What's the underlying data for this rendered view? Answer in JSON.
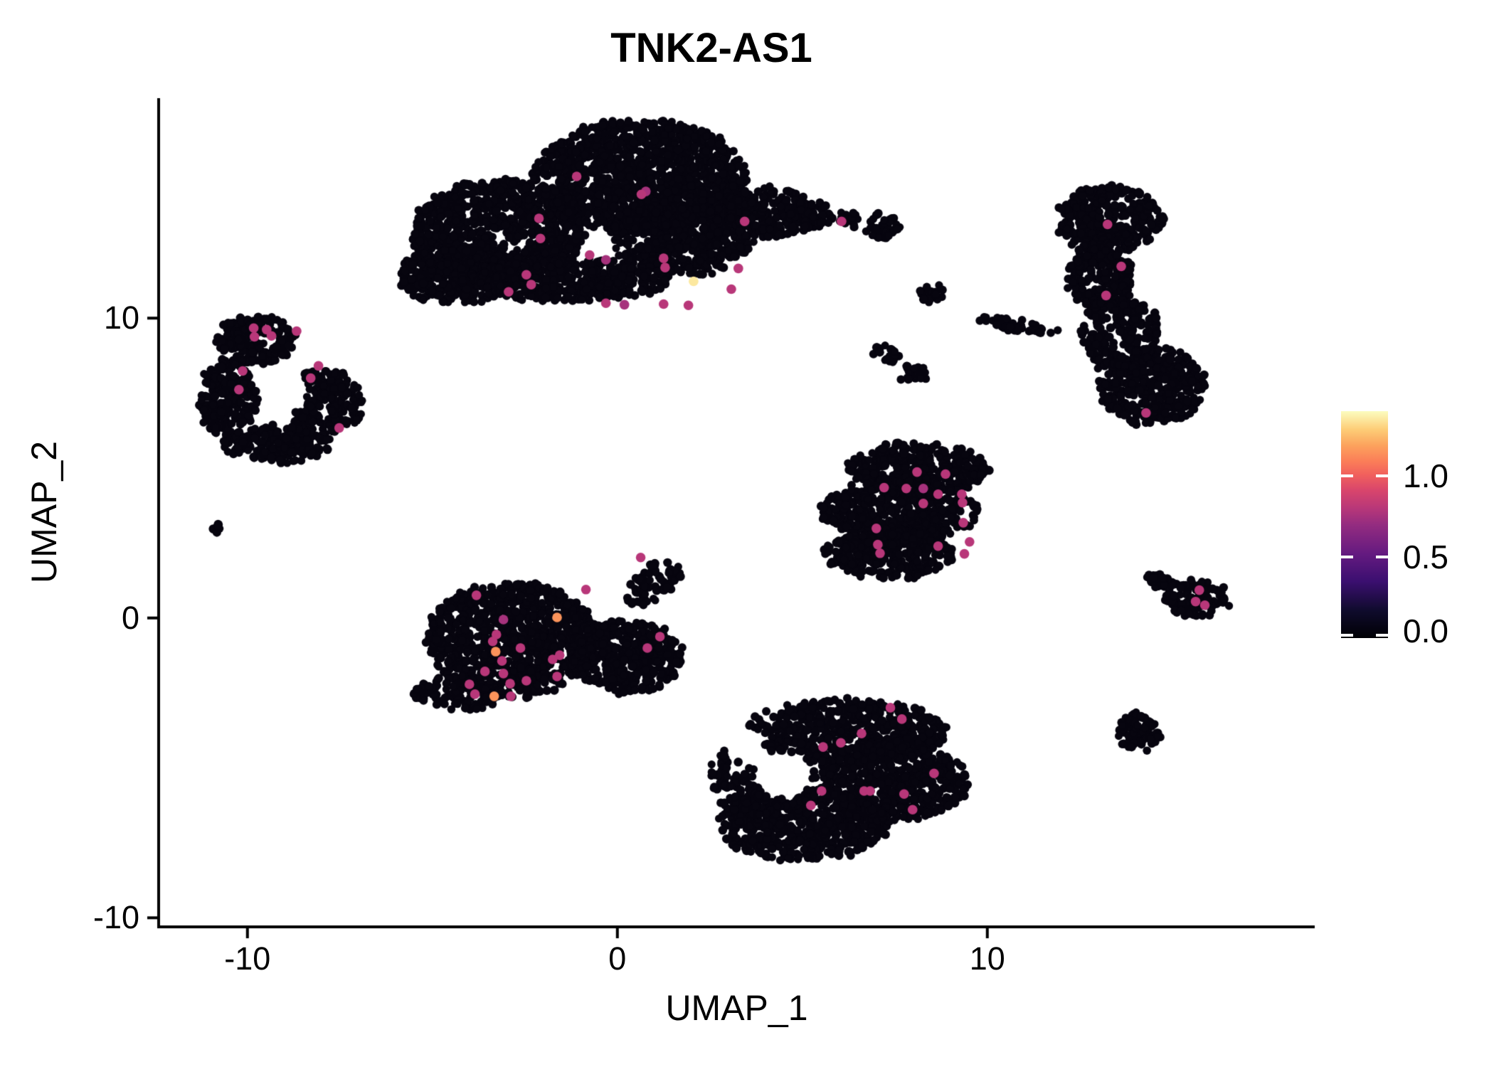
{
  "title": "TNK2-AS1",
  "axes": {
    "x": {
      "label": "UMAP_1",
      "ticks": [
        {
          "label": "-10",
          "value": -10
        },
        {
          "label": "0",
          "value": 0
        },
        {
          "label": "10",
          "value": 10
        }
      ]
    },
    "y": {
      "label": "UMAP_2",
      "ticks": [
        {
          "label": "10",
          "value": 10
        },
        {
          "label": "0",
          "value": 0
        },
        {
          "label": "-10",
          "value": -10
        }
      ]
    }
  },
  "colors": {
    "background": "#ffffff",
    "axis": "#000000",
    "point_base": "#07050f",
    "highlight_pink": "#b73779",
    "highlight_orange": "#fca35d",
    "highlight_yellow": "#f6eda4"
  },
  "chart_data": {
    "type": "scatter",
    "title": "TNK2-AS1",
    "xlabel": "UMAP_1",
    "ylabel": "UMAP_2",
    "xlim": [
      -12.4,
      18.85
    ],
    "ylim": [
      -10.3,
      17.34
    ],
    "x_ticks": [
      -10,
      0,
      10
    ],
    "y_ticks": [
      -10,
      0,
      10
    ],
    "grid": false,
    "point_radius_px": 5.5,
    "highlight_radius_px": 6.8,
    "colorbar": {
      "position": "right",
      "range": [
        0,
        1.4
      ],
      "ticks": [
        {
          "label": "1.0",
          "value": 1.0
        },
        {
          "label": "0.5",
          "value": 0.5
        },
        {
          "label": "0.0",
          "value": 0.0
        }
      ],
      "stops": [
        [
          0,
          "#000004"
        ],
        [
          0.12,
          "#0f0b2c"
        ],
        [
          0.25,
          "#3b0f70"
        ],
        [
          0.37,
          "#641a80"
        ],
        [
          0.5,
          "#942c80"
        ],
        [
          0.57,
          "#b73779"
        ],
        [
          0.65,
          "#d8456c"
        ],
        [
          0.72,
          "#f1605d"
        ],
        [
          0.78,
          "#fb7e58"
        ],
        [
          0.85,
          "#fca35d"
        ],
        [
          0.92,
          "#fdcd77"
        ],
        [
          1,
          "#fcfdbf"
        ]
      ]
    },
    "clusters": [
      {
        "name": "top-center",
        "holes": [],
        "blobs": [
          {
            "x": -3.23,
            "y": 12.83,
            "rx": 2.31,
            "ry": 1.78,
            "n": 900
          },
          {
            "x": 0.62,
            "y": 14.73,
            "rx": 2.88,
            "ry": 1.9,
            "n": 1200
          },
          {
            "x": 1.77,
            "y": 12.83,
            "rx": 1.92,
            "ry": 1.43,
            "n": 600
          },
          {
            "x": 4.08,
            "y": 13.54,
            "rx": 1.15,
            "ry": 0.83,
            "n": 210
          },
          {
            "x": -4.38,
            "y": 11.4,
            "rx": 1.54,
            "ry": 0.95,
            "n": 320
          },
          {
            "x": 5.04,
            "y": 13.42,
            "rx": 0.77,
            "ry": 0.48,
            "n": 80
          },
          {
            "x": -1.31,
            "y": 11.28,
            "rx": 2.69,
            "ry": 0.71,
            "n": 420
          }
        ]
      },
      {
        "name": "top-right",
        "holes": [],
        "blobs": [
          {
            "x": 13.31,
            "y": 13.3,
            "rx": 1.44,
            "ry": 1.07,
            "n": 330
          },
          {
            "x": 13.02,
            "y": 11.4,
            "rx": 0.87,
            "ry": 1.19,
            "n": 220
          },
          {
            "x": 13.6,
            "y": 9.5,
            "rx": 1.06,
            "ry": 1.31,
            "n": 200
          },
          {
            "x": 14.46,
            "y": 7.72,
            "rx": 1.44,
            "ry": 1.31,
            "n": 400
          }
        ]
      },
      {
        "name": "left",
        "holes": [
          {
            "x": -9.0,
            "y": 7.48,
            "r": 0.7
          }
        ],
        "blobs": [
          {
            "x": -9.77,
            "y": 9.26,
            "rx": 1.06,
            "ry": 0.83,
            "n": 190
          },
          {
            "x": -10.54,
            "y": 7.36,
            "rx": 0.77,
            "ry": 1.31,
            "n": 210
          },
          {
            "x": -7.94,
            "y": 7.24,
            "rx": 1.06,
            "ry": 1.07,
            "n": 240
          },
          {
            "x": -9.19,
            "y": 5.82,
            "rx": 1.54,
            "ry": 0.59,
            "n": 190
          }
        ]
      },
      {
        "name": "left-tiny",
        "holes": [],
        "blobs": [
          {
            "x": -10.79,
            "y": 3.04,
            "rx": 0.18,
            "ry": 0.2,
            "n": 8
          }
        ]
      },
      {
        "name": "center-left",
        "holes": [],
        "blobs": [
          {
            "x": -2.85,
            "y": -0.71,
            "rx": 2.31,
            "ry": 1.9,
            "n": 950
          },
          {
            "x": 0.23,
            "y": -1.31,
            "rx": 1.54,
            "ry": 1.19,
            "n": 400
          },
          {
            "x": 1.0,
            "y": 1.19,
            "rx": 0.9,
            "ry": 0.55,
            "n": 70,
            "rot": 43
          },
          {
            "x": -4.38,
            "y": -2.49,
            "rx": 1.2,
            "ry": 0.6,
            "n": 120
          }
        ]
      },
      {
        "name": "mid-right",
        "holes": [],
        "blobs": [
          {
            "x": 8.12,
            "y": 4.99,
            "rx": 1.92,
            "ry": 0.83,
            "n": 350
          },
          {
            "x": 7.63,
            "y": 3.56,
            "rx": 2.12,
            "ry": 1.07,
            "n": 500
          },
          {
            "x": 7.35,
            "y": 2.14,
            "rx": 1.73,
            "ry": 0.83,
            "n": 310
          }
        ]
      },
      {
        "name": "bottom-center",
        "holes": [
          {
            "x": 4.46,
            "y": -5.23,
            "r": 0.8
          },
          {
            "x": 3.56,
            "y": -4.4,
            "r": 0.5
          }
        ],
        "blobs": [
          {
            "x": 6.19,
            "y": -3.8,
            "rx": 2.69,
            "ry": 1.07,
            "n": 620
          },
          {
            "x": 7.35,
            "y": -5.46,
            "rx": 2.12,
            "ry": 1.31,
            "n": 600
          },
          {
            "x": 5.04,
            "y": -6.89,
            "rx": 2.31,
            "ry": 1.19,
            "n": 590
          },
          {
            "x": 3.69,
            "y": -5.23,
            "rx": 1.15,
            "ry": 1.43,
            "n": 180
          }
        ]
      },
      {
        "name": "right-arrow",
        "holes": [],
        "blobs": [
          {
            "x": 15.67,
            "y": 0.64,
            "rx": 0.87,
            "ry": 0.59,
            "n": 110
          },
          {
            "x": 14.75,
            "y": 1.19,
            "rx": 0.6,
            "ry": 0.25,
            "n": 35,
            "rot": -30
          }
        ]
      },
      {
        "name": "right-small",
        "holes": [],
        "blobs": [
          {
            "x": 14.08,
            "y": -3.8,
            "rx": 0.55,
            "ry": 0.62,
            "n": 80
          }
        ]
      },
      {
        "name": "fragments",
        "holes": [],
        "blobs": [
          {
            "x": 7.15,
            "y": 13.06,
            "rx": 0.48,
            "ry": 0.43,
            "n": 40
          },
          {
            "x": 8.5,
            "y": 10.81,
            "rx": 0.35,
            "ry": 0.29,
            "n": 20
          },
          {
            "x": 10.81,
            "y": 9.74,
            "rx": 1.15,
            "ry": 0.17,
            "n": 45,
            "rot": -12
          },
          {
            "x": 7.25,
            "y": 8.79,
            "rx": 0.38,
            "ry": 0.29,
            "n": 22
          },
          {
            "x": 8.02,
            "y": 8.19,
            "rx": 0.38,
            "ry": 0.33,
            "n": 25
          },
          {
            "x": 6.29,
            "y": 13.3,
            "rx": 0.29,
            "ry": 0.26,
            "n": 15
          }
        ]
      }
    ],
    "expressing_cells": [
      [
        -1.1,
        14.73,
        0.8
      ],
      [
        0.65,
        14.13,
        0.8
      ],
      [
        0.77,
        14.23,
        0.75
      ],
      [
        -2.12,
        13.33,
        0.8
      ],
      [
        -2.08,
        12.66,
        0.8
      ],
      [
        -0.75,
        12.11,
        0.8
      ],
      [
        -0.31,
        11.95,
        0.75
      ],
      [
        -2.46,
        11.45,
        0.8
      ],
      [
        -2.33,
        11.12,
        0.8
      ],
      [
        -2.94,
        10.88,
        0.8
      ],
      [
        1.25,
        12.0,
        0.8
      ],
      [
        1.29,
        11.69,
        0.8
      ],
      [
        3.27,
        11.66,
        0.8
      ],
      [
        3.08,
        10.97,
        0.8
      ],
      [
        1.25,
        10.47,
        0.8
      ],
      [
        1.92,
        10.43,
        0.8
      ],
      [
        -0.31,
        10.5,
        0.8
      ],
      [
        0.19,
        10.45,
        0.75
      ],
      [
        3.44,
        13.23,
        0.8
      ],
      [
        2.06,
        11.23,
        1.35
      ],
      [
        6.06,
        13.23,
        0.8
      ],
      [
        13.25,
        13.13,
        0.8
      ],
      [
        13.62,
        11.73,
        0.8
      ],
      [
        13.21,
        10.76,
        0.8
      ],
      [
        14.29,
        6.84,
        0.8
      ],
      [
        -9.83,
        9.67,
        0.8
      ],
      [
        -9.81,
        9.38,
        0.8
      ],
      [
        -9.48,
        9.62,
        0.8
      ],
      [
        -9.35,
        9.41,
        0.8
      ],
      [
        -8.67,
        9.57,
        0.8
      ],
      [
        -8.08,
        8.41,
        0.8
      ],
      [
        -8.29,
        8.0,
        0.8
      ],
      [
        -10.13,
        8.24,
        0.8
      ],
      [
        -10.23,
        7.62,
        0.8
      ],
      [
        -7.52,
        6.34,
        0.8
      ],
      [
        -3.81,
        0.76,
        0.8
      ],
      [
        -0.85,
        0.95,
        0.8
      ],
      [
        0.63,
        2.02,
        0.8
      ],
      [
        -3.08,
        -0.05,
        0.75
      ],
      [
        -3.27,
        -0.55,
        0.8
      ],
      [
        -3.37,
        -0.78,
        0.8
      ],
      [
        -2.62,
        -1.0,
        0.8
      ],
      [
        -3.12,
        -1.43,
        0.8
      ],
      [
        -1.75,
        -1.38,
        0.8
      ],
      [
        -1.56,
        -1.24,
        0.8
      ],
      [
        -3.58,
        -1.78,
        0.8
      ],
      [
        -3.08,
        -1.85,
        0.8
      ],
      [
        -2.9,
        -2.19,
        0.8
      ],
      [
        -4.0,
        -2.21,
        0.8
      ],
      [
        -2.46,
        -2.09,
        0.8
      ],
      [
        -1.63,
        -1.95,
        0.8
      ],
      [
        -3.85,
        -2.54,
        0.8
      ],
      [
        -2.88,
        -2.61,
        0.8
      ],
      [
        1.15,
        -0.62,
        0.8
      ],
      [
        0.81,
        -1.0,
        0.8
      ],
      [
        -1.63,
        0.02,
        1.15
      ],
      [
        -3.29,
        -1.12,
        1.15
      ],
      [
        -3.33,
        -2.61,
        1.15
      ],
      [
        8.1,
        4.87,
        0.8
      ],
      [
        8.87,
        4.8,
        0.8
      ],
      [
        7.21,
        4.35,
        0.8
      ],
      [
        7.81,
        4.32,
        0.8
      ],
      [
        8.27,
        4.32,
        0.75
      ],
      [
        8.67,
        4.13,
        0.8
      ],
      [
        9.31,
        4.13,
        0.8
      ],
      [
        8.27,
        3.82,
        0.8
      ],
      [
        9.33,
        3.85,
        0.8
      ],
      [
        9.35,
        3.18,
        0.8
      ],
      [
        7.0,
        2.99,
        0.8
      ],
      [
        7.04,
        2.45,
        0.8
      ],
      [
        7.1,
        2.16,
        0.8
      ],
      [
        8.67,
        2.4,
        0.8
      ],
      [
        9.38,
        2.14,
        0.8
      ],
      [
        9.52,
        2.54,
        0.8
      ],
      [
        7.38,
        -2.99,
        0.8
      ],
      [
        7.69,
        -3.37,
        0.8
      ],
      [
        6.6,
        -3.85,
        0.8
      ],
      [
        6.04,
        -4.16,
        0.8
      ],
      [
        5.56,
        -4.3,
        0.8
      ],
      [
        8.56,
        -5.18,
        0.8
      ],
      [
        5.52,
        -5.77,
        0.8
      ],
      [
        6.67,
        -5.77,
        0.8
      ],
      [
        6.83,
        -5.77,
        0.8
      ],
      [
        7.75,
        -5.87,
        0.8
      ],
      [
        5.23,
        -6.25,
        0.8
      ],
      [
        7.98,
        -6.39,
        0.8
      ],
      [
        15.73,
        0.93,
        0.8
      ],
      [
        15.63,
        0.55,
        0.8
      ],
      [
        15.88,
        0.43,
        0.8
      ]
    ]
  }
}
